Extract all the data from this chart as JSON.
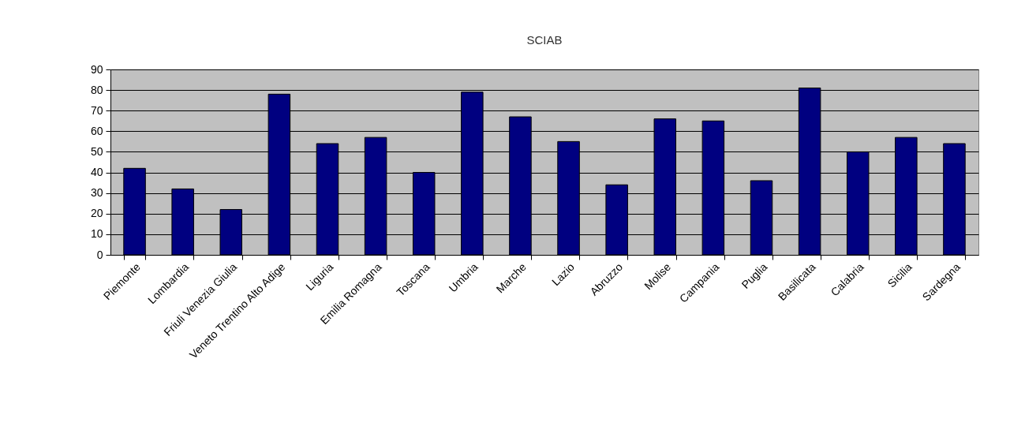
{
  "chart_data": {
    "type": "bar",
    "title": "SCIAB",
    "categories": [
      "Piemonte",
      "Lombardia",
      "Friuli Venezia Giulia",
      "Veneto Trentino Alto Adige",
      "Liguria",
      "Emilia Romagna",
      "Toscana",
      "Umbria",
      "Marche",
      "Lazio",
      "Abruzzo",
      "Molise",
      "Campania",
      "Puglia",
      "Basilicata",
      "Calabria",
      "Sicilia",
      "Sardegna"
    ],
    "values": [
      42,
      32,
      22,
      78,
      54,
      57,
      40,
      79,
      67,
      55,
      34,
      66,
      65,
      36,
      81,
      50,
      57,
      54
    ],
    "color": "#000080",
    "ylim": [
      0,
      90
    ],
    "yticks": [
      0,
      10,
      20,
      30,
      40,
      50,
      60,
      70,
      80,
      90
    ],
    "grid": "y"
  }
}
